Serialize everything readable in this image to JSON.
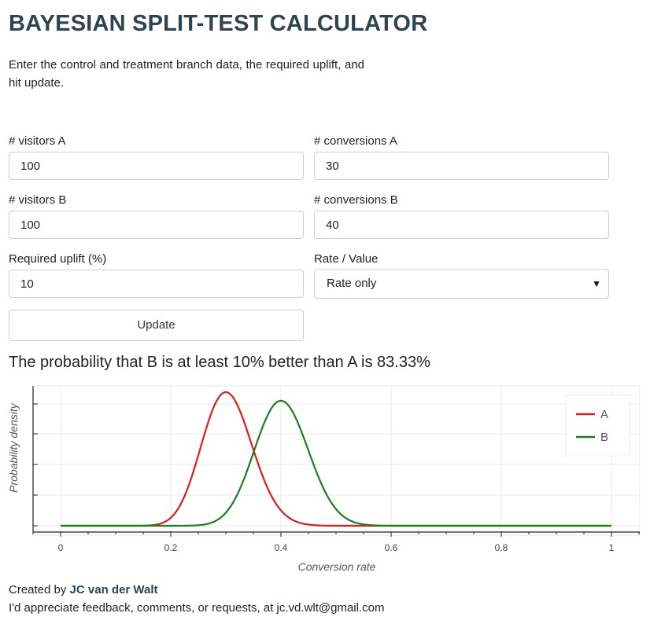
{
  "header": {
    "title": "BAYESIAN SPLIT-TEST CALCULATOR",
    "intro": "Enter the control and treatment branch data, the required uplift, and hit update."
  },
  "form": {
    "visitors_a": {
      "label": "# visitors A",
      "value": "100"
    },
    "conversions_a": {
      "label": "# conversions A",
      "value": "30"
    },
    "visitors_b": {
      "label": "# visitors B",
      "value": "100"
    },
    "conversions_b": {
      "label": "# conversions B",
      "value": "40"
    },
    "uplift": {
      "label": "Required uplift (%)",
      "value": "10"
    },
    "rate_value": {
      "label": "Rate / Value",
      "selected": "Rate only"
    },
    "update_label": "Update"
  },
  "result": {
    "text": "The probability that B is at least 10% better than A is 83.33%"
  },
  "chart_data": {
    "type": "line",
    "xlabel": "Conversion rate",
    "ylabel": "Probability density",
    "xlim": [
      0,
      1
    ],
    "xticks": [
      "0",
      "0.2",
      "0.4",
      "0.6",
      "0.8",
      "1"
    ],
    "grid": true,
    "legend_position": "top-right",
    "series": [
      {
        "name": "A",
        "color": "#dd1c1c",
        "distribution": "beta",
        "alpha": 31,
        "beta": 71,
        "peak_x": 0.3
      },
      {
        "name": "B",
        "color": "#1a7f1a",
        "distribution": "beta",
        "alpha": 41,
        "beta": 61,
        "peak_x": 0.4
      }
    ]
  },
  "footer": {
    "created_by": "Created by",
    "author": "JC van der Walt",
    "feedback": "I'd appreciate feedback, comments, or requests, at jc.vd.wlt@gmail.com"
  }
}
